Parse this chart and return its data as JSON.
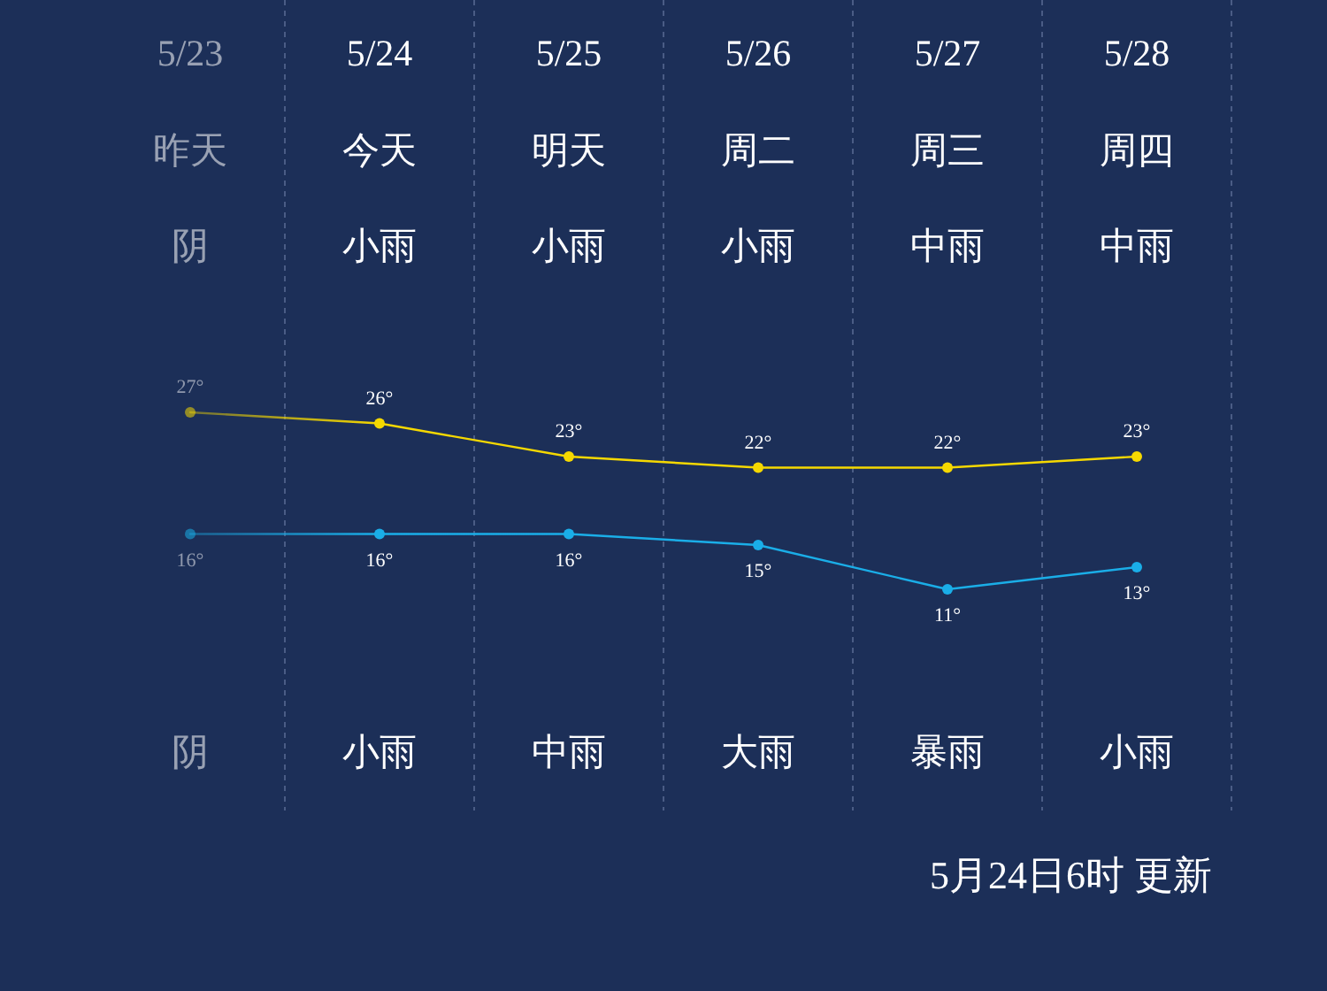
{
  "chart_data": {
    "type": "line",
    "categories": [
      "5/23",
      "5/24",
      "5/25",
      "5/26",
      "5/27",
      "5/28"
    ],
    "series": [
      {
        "color": "#f5d800",
        "values": [
          27,
          26,
          23,
          22,
          22,
          23
        ],
        "value_labels": [
          "27°",
          "26°",
          "23°",
          "22°",
          "22°",
          "23°"
        ]
      },
      {
        "color": "#1aaee8",
        "values": [
          16,
          16,
          16,
          15,
          11,
          13
        ],
        "value_labels": [
          "16°",
          "16°",
          "16°",
          "15°",
          "11°",
          "13°"
        ]
      }
    ],
    "annotations": [
      "昨天",
      "今天",
      "明天",
      "周二",
      "周三",
      "周四",
      "阴",
      "小雨",
      "小雨",
      "小雨",
      "中雨",
      "中雨",
      "阴",
      "小雨",
      "中雨",
      "大雨",
      "暴雨",
      "小雨",
      "5月24日6时 更新"
    ],
    "grid": "x",
    "marker": "circle",
    "line_style": "solid"
  }
}
